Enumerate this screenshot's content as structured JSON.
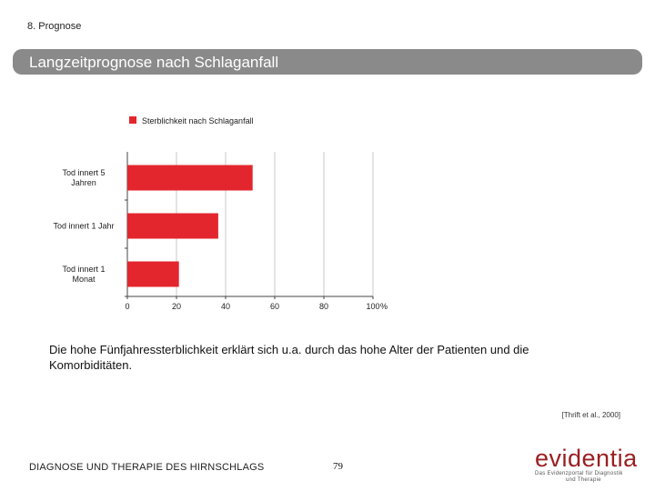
{
  "header": {
    "section": "8. Prognose",
    "title": "Langzeitprognose nach Schlaganfall"
  },
  "chart_data": {
    "type": "bar",
    "orientation": "horizontal",
    "categories": [
      [
        "Tod innert 5",
        "Jahren"
      ],
      [
        "Tod innert 1 Jahr"
      ],
      [
        "Tod innert 1",
        "Monat"
      ]
    ],
    "series": [
      {
        "name": "Sterblichkeit nach Schlaganfall",
        "values": [
          51,
          37,
          21
        ],
        "color": "#e3262e"
      }
    ],
    "xticks": [
      "0",
      "20",
      "40",
      "60",
      "80",
      "100"
    ],
    "xunit": "%",
    "xlim": [
      0,
      100
    ],
    "grid": "vertical",
    "legend_position": "top"
  },
  "caption": "Die hohe Fünfjahressterblichkeit erklärt sich u.a. durch das hohe Alter der Patienten und die Komorbiditäten.",
  "citation": "[Thrift et al., 2000]",
  "footer": {
    "left": "DIAGNOSE UND THERAPIE DES HIRNSCHLAGS",
    "page": "79"
  },
  "logo": {
    "word": "evidentia",
    "tagline_1": "Das Evidenzportal für Diagnostik",
    "tagline_2": "und Therapie"
  }
}
